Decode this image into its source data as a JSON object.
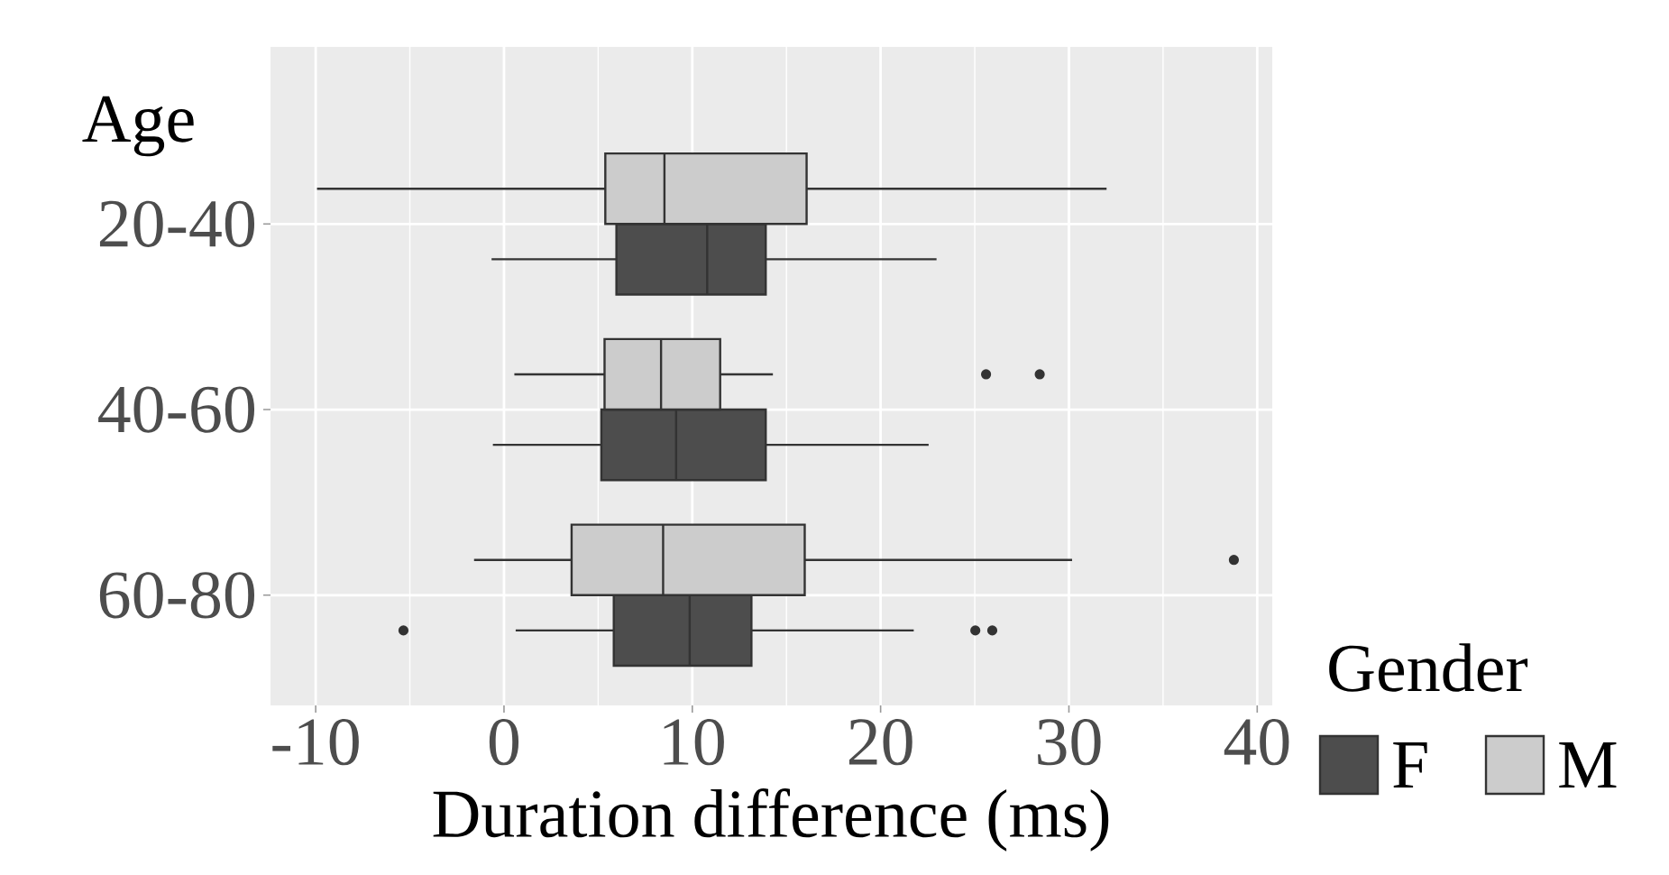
{
  "chart_data": {
    "type": "box",
    "orientation": "horizontal",
    "ylabel": "Age",
    "xlabel": "Duration difference (ms)",
    "legend_title": "Gender",
    "legend": "bottom right",
    "grid": true,
    "categories": [
      "20-40",
      "40-60",
      "60-80"
    ],
    "xlim": [
      -12.4,
      40.8
    ],
    "xticks": [
      -10,
      0,
      10,
      20,
      30,
      40
    ],
    "series": [
      {
        "name": "F",
        "color": "#4d4d4d",
        "boxes": [
          {
            "low": -0.66,
            "q1": 5.97,
            "median": 10.79,
            "q3": 13.9,
            "high": 22.97
          },
          {
            "low": -0.59,
            "q1": 5.17,
            "median": 9.14,
            "q3": 13.9,
            "high": 22.55
          },
          {
            "low": 0.62,
            "q1": 5.83,
            "median": 9.86,
            "q3": 13.14,
            "high": 21.76,
            "outliers": [
              -5.34,
              25.03,
              25.93
            ]
          }
        ]
      },
      {
        "name": "M",
        "color": "#cccccc",
        "boxes": [
          {
            "low": -9.93,
            "q1": 5.38,
            "median": 8.52,
            "q3": 16.07,
            "high": 32.0
          },
          {
            "low": 0.55,
            "q1": 5.34,
            "median": 8.34,
            "q3": 11.48,
            "high": 14.28,
            "outliers": [
              25.6,
              28.45
            ]
          },
          {
            "low": -1.59,
            "q1": 3.59,
            "median": 8.45,
            "q3": 15.97,
            "high": 30.17,
            "outliers": [
              38.76
            ]
          }
        ]
      }
    ]
  }
}
